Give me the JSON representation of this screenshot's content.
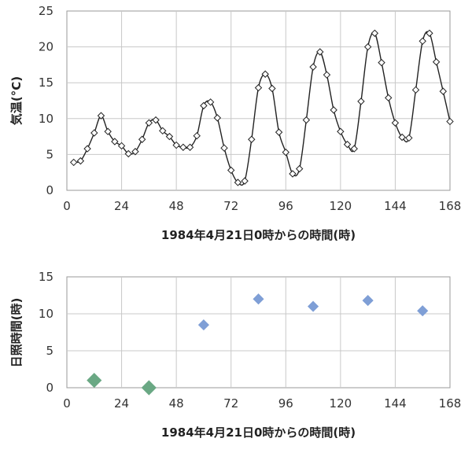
{
  "chart_data": [
    {
      "type": "line",
      "xlabel": "1984年4月21日0時からの時間(時)",
      "ylabel": "気温(°C)",
      "xlim": [
        0,
        168
      ],
      "ylim": [
        0,
        25
      ],
      "x_ticks": [
        "0",
        "24",
        "48",
        "72",
        "96",
        "120",
        "144",
        "168"
      ],
      "y_ticks": [
        "0",
        "5",
        "10",
        "15",
        "20",
        "25"
      ],
      "grid": true,
      "line_color": "#222222",
      "marker": "diamond-open",
      "series": [
        {
          "x": [
            3,
            6,
            9,
            12,
            15,
            18,
            21,
            24,
            27,
            30,
            33,
            36,
            39,
            42,
            45,
            48,
            51,
            54,
            57,
            60,
            63,
            66,
            69,
            72,
            75,
            78,
            81,
            84,
            87,
            90,
            93,
            96,
            99,
            102,
            105,
            108,
            111,
            114,
            117,
            120,
            123,
            126,
            129,
            132,
            135,
            138,
            141,
            144,
            147,
            150,
            153,
            156,
            159,
            162,
            165,
            168
          ],
          "values": [
            3.9,
            4.1,
            5.8,
            8.0,
            10.4,
            8.2,
            6.8,
            6.2,
            5.1,
            5.4,
            7.1,
            9.4,
            9.8,
            8.3,
            7.5,
            6.3,
            6.0,
            6.0,
            7.6,
            11.8,
            12.3,
            10.1,
            5.9,
            2.8,
            1.1,
            1.3,
            7.1,
            14.3,
            16.2,
            14.2,
            8.1,
            5.3,
            2.3,
            3.0,
            9.8,
            17.2,
            19.3,
            16.1,
            11.2,
            8.2,
            6.4,
            5.8,
            12.4,
            20.0,
            21.9,
            17.8,
            12.9,
            9.4,
            7.4,
            7.3,
            14.0,
            20.8,
            21.9,
            17.9,
            13.8,
            9.6
          ]
        }
      ]
    },
    {
      "type": "scatter",
      "xlabel": "1984年4月21日0時からの時間(時)",
      "ylabel": "日照時間(時)",
      "xlim": [
        0,
        168
      ],
      "ylim": [
        0,
        15
      ],
      "x_ticks": [
        "0",
        "24",
        "48",
        "72",
        "96",
        "120",
        "144",
        "168"
      ],
      "y_ticks": [
        "0",
        "5",
        "10",
        "15"
      ],
      "grid": true,
      "marker": "diamond",
      "series": [
        {
          "x": [
            12,
            36,
            60,
            84,
            108,
            132,
            156
          ],
          "values": [
            1.0,
            0.0,
            8.5,
            12.0,
            11.0,
            11.8,
            10.4
          ],
          "point_colors": [
            "#6aa884",
            "#6aa884",
            "#7f9fd6",
            "#7f9fd6",
            "#7f9fd6",
            "#7f9fd6",
            "#7f9fd6"
          ],
          "point_sizes": [
            "large",
            "large",
            "normal",
            "normal",
            "normal",
            "normal",
            "normal"
          ]
        }
      ]
    }
  ]
}
